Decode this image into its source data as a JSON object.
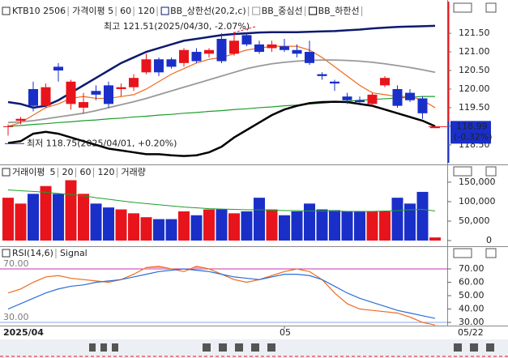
{
  "chart_data": [
    {
      "type": "candlestick",
      "name": "KTB10 2506",
      "open": [
        118.98,
        119.15,
        120.0,
        119.55,
        120.6,
        119.6,
        119.5,
        119.95,
        120.1,
        120.0,
        120.05,
        120.45,
        120.8,
        120.8,
        120.7,
        121.0,
        120.95,
        121.35,
        120.95,
        121.45,
        121.2,
        121.1,
        121.15,
        121.05,
        121.0,
        120.4,
        120.2,
        119.8,
        119.7,
        119.6,
        120.1,
        120.0,
        119.9,
        119.75,
        118.95
      ],
      "high": [
        119.05,
        119.25,
        120.2,
        120.15,
        120.7,
        120.25,
        119.9,
        120.1,
        120.2,
        120.15,
        120.4,
        120.95,
        120.85,
        120.85,
        121.1,
        121.1,
        121.1,
        121.5,
        121.51,
        121.5,
        121.3,
        121.3,
        121.35,
        121.2,
        121.3,
        120.45,
        120.25,
        119.9,
        119.8,
        119.9,
        120.35,
        120.1,
        120.0,
        119.8,
        119.0
      ],
      "low": [
        118.75,
        119.05,
        119.4,
        119.5,
        120.2,
        119.45,
        119.35,
        119.7,
        119.5,
        119.8,
        119.95,
        120.4,
        120.35,
        120.55,
        120.6,
        120.7,
        120.85,
        120.7,
        120.9,
        121.15,
        120.95,
        121.0,
        121.0,
        120.85,
        120.65,
        120.25,
        119.95,
        119.6,
        119.6,
        119.55,
        120.05,
        119.5,
        119.65,
        119.2,
        118.95
      ],
      "close": [
        119.0,
        119.2,
        119.55,
        120.05,
        120.5,
        120.2,
        119.65,
        119.85,
        119.6,
        120.05,
        120.3,
        120.8,
        120.45,
        120.6,
        121.05,
        120.75,
        121.05,
        120.75,
        121.3,
        121.2,
        121.0,
        121.2,
        121.05,
        120.95,
        120.7,
        120.35,
        120.15,
        119.7,
        119.65,
        119.85,
        120.3,
        119.55,
        119.7,
        119.35,
        118.99
      ],
      "series": [
        {
          "name": "가격이평 5",
          "color": "#f06a1e",
          "values": [
            119.0,
            119.1,
            119.3,
            119.5,
            119.6,
            119.75,
            119.8,
            119.75,
            119.75,
            119.8,
            119.85,
            120.0,
            120.2,
            120.4,
            120.55,
            120.7,
            120.8,
            120.85,
            120.95,
            121.05,
            121.1,
            121.15,
            121.15,
            121.15,
            121.05,
            120.85,
            120.6,
            120.35,
            120.1,
            119.9,
            119.85,
            119.8,
            119.8,
            119.7,
            119.5
          ]
        },
        {
          "name": "60",
          "color": "#1e9e2a",
          "values": [
            119.0,
            119.02,
            119.05,
            119.07,
            119.1,
            119.12,
            119.15,
            119.17,
            119.2,
            119.22,
            119.25,
            119.27,
            119.3,
            119.32,
            119.35,
            119.37,
            119.4,
            119.42,
            119.45,
            119.47,
            119.5,
            119.52,
            119.55,
            119.57,
            119.6,
            119.62,
            119.65,
            119.67,
            119.7,
            119.72,
            119.74,
            119.76,
            119.78,
            119.8,
            119.8
          ]
        },
        {
          "name": "120",
          "color": "#d6338a"
        },
        {
          "name": "BB_상한선(20,2,c)",
          "color": "#0c1a6e",
          "width": 2.5,
          "values": [
            119.65,
            119.6,
            119.5,
            119.55,
            119.7,
            119.9,
            120.1,
            120.3,
            120.5,
            120.7,
            120.85,
            121.0,
            121.1,
            121.2,
            121.3,
            121.35,
            121.4,
            121.45,
            121.48,
            121.5,
            121.52,
            121.53,
            121.53,
            121.53,
            121.54,
            121.55,
            121.56,
            121.58,
            121.6,
            121.63,
            121.65,
            121.67,
            121.68,
            121.69,
            121.7
          ]
        },
        {
          "name": "BB_중심선",
          "color": "#999999",
          "width": 1.8,
          "values": [
            119.1,
            119.12,
            119.15,
            119.2,
            119.25,
            119.3,
            119.35,
            119.42,
            119.5,
            119.58,
            119.66,
            119.75,
            119.85,
            119.95,
            120.05,
            120.15,
            120.25,
            120.35,
            120.45,
            120.55,
            120.62,
            120.68,
            120.72,
            120.75,
            120.77,
            120.78,
            120.78,
            120.77,
            120.75,
            120.72,
            120.68,
            120.63,
            120.58,
            120.52,
            120.45
          ]
        },
        {
          "name": "BB_하한선",
          "color": "#000000",
          "width": 2.5,
          "values": [
            118.55,
            118.6,
            118.8,
            118.85,
            118.8,
            118.7,
            118.6,
            118.5,
            118.4,
            118.35,
            118.3,
            118.25,
            118.25,
            118.22,
            118.2,
            118.22,
            118.3,
            118.45,
            118.7,
            118.9,
            119.1,
            119.3,
            119.45,
            119.55,
            119.62,
            119.65,
            119.66,
            119.65,
            119.6,
            119.55,
            119.45,
            119.35,
            119.25,
            119.15,
            119.0
          ]
        }
      ],
      "ylim": [
        118.04,
        122.22
      ],
      "yticks": [
        {
          "value": 121.5,
          "label": "121.50"
        },
        {
          "value": 121,
          "label": "121.00"
        },
        {
          "value": 120.5,
          "label": "120.50"
        },
        {
          "value": 120,
          "label": "120.00"
        },
        {
          "value": 119.5,
          "label": "119.50"
        },
        {
          "value": 119,
          "label": "119.00"
        },
        {
          "value": 118.5,
          "label": "118.50"
        }
      ],
      "up_color": "#e8141c",
      "down_color": "#1a2fc8",
      "high_note": {
        "text": "최고 121.51(2025/04/30, -2.07%)",
        "value": 121.51,
        "index": 18
      },
      "low_note": {
        "text": "최저 118.75(2025/04/01, +0.20%)",
        "value": 118.75,
        "index": 0
      },
      "last_price": {
        "value": 118.99,
        "label": "118.99",
        "change": "(-0.32%)"
      }
    },
    {
      "type": "bar",
      "name": "거래이평",
      "values": [
        110000,
        95000,
        120000,
        140000,
        120000,
        155000,
        120000,
        95000,
        85000,
        80000,
        70000,
        60000,
        55000,
        55000,
        75000,
        65000,
        80000,
        80000,
        70000,
        75000,
        110000,
        80000,
        65000,
        75000,
        95000,
        80000,
        78000,
        75000,
        75000,
        75000,
        75000,
        110000,
        95000,
        125000,
        8000
      ],
      "series": [
        {
          "name": "5",
          "color": "#f06a1e"
        },
        {
          "name": "20",
          "color": "#1a2fc8"
        },
        {
          "name": "60",
          "color": "#1e9e2a",
          "values": [
            130000,
            128000,
            126000,
            124000,
            121000,
            118000,
            115000,
            110000,
            106000,
            102000,
            98000,
            95000,
            92000,
            89000,
            86000,
            84000,
            82000,
            81000,
            80000,
            79000,
            79000,
            78000,
            77000,
            77000,
            76000,
            76000,
            76000,
            75000,
            75000,
            75000,
            76000,
            77000,
            79000,
            80000,
            76000
          ]
        },
        {
          "name": "120",
          "color": "#d6338a"
        }
      ],
      "label": "거래량",
      "ylim": [
        0,
        181000
      ],
      "yticks": [
        {
          "value": 150000,
          "label": "150,000"
        },
        {
          "value": 100000,
          "label": "100,000"
        },
        {
          "value": 50000,
          "label": "50,000"
        },
        0
      ]
    },
    {
      "type": "line",
      "name": "RSI(14,6)",
      "series": [
        {
          "name": "RSI(14,6)",
          "color": "#f06a1e",
          "values": [
            52,
            55,
            60,
            64,
            65,
            63,
            62,
            61,
            60,
            62,
            66,
            71,
            72,
            70,
            68,
            72,
            70,
            66,
            62,
            60,
            62,
            65,
            68,
            70,
            68,
            62,
            52,
            44,
            40,
            39,
            38,
            37,
            34,
            30,
            28
          ]
        },
        {
          "name": "Signal",
          "color": "#2a6fd6",
          "values": [
            40,
            44,
            48,
            52,
            55,
            57,
            58,
            60,
            61,
            62,
            64,
            66,
            68,
            69,
            70,
            69,
            68,
            66,
            64,
            63,
            62,
            64,
            66,
            66,
            65,
            62,
            57,
            52,
            48,
            45,
            42,
            39,
            37,
            35,
            33
          ]
        }
      ],
      "levels": [
        {
          "value": 70,
          "label": "70.00",
          "color": "#c03aa8"
        },
        {
          "value": 30,
          "label": "30.00",
          "color": "#8aa6e8"
        }
      ],
      "ylim": [
        27.6,
        80.3
      ],
      "yticks": [
        {
          "value": 70,
          "label": "70.00"
        },
        {
          "value": 60,
          "label": "60.00"
        },
        {
          "value": 50,
          "label": "50.00"
        },
        {
          "value": 40,
          "label": "40.00"
        },
        {
          "value": 30,
          "label": "30.00"
        }
      ],
      "date_labels": [
        {
          "label": "2025/04",
          "index": 0
        },
        {
          "label": "05",
          "index": 22
        },
        {
          "label": "05/22",
          "index": 34
        }
      ]
    }
  ]
}
